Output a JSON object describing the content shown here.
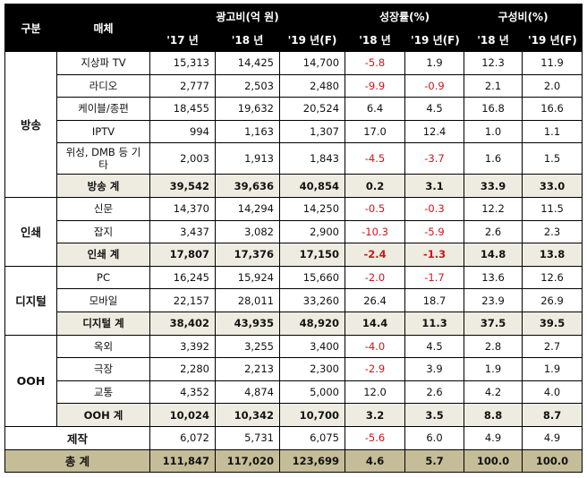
{
  "header": {
    "category": "구분",
    "media": "매체",
    "groups": {
      "ad_spend": "광고비(억 원)",
      "growth": "성장률(%)",
      "share": "구성비(%)"
    },
    "years": {
      "y17": "'17 년",
      "y18": "'18 년",
      "y19f": "'19 년(F)"
    }
  },
  "colors": {
    "header_bg": "#000000",
    "subtotal_bg": "#eeece1",
    "total_bg": "#c4bd97",
    "negative_text": "#d0151a"
  },
  "sections": {
    "broadcast": {
      "label": "방송",
      "rows": [
        {
          "media": "지상파 TV",
          "s17": "15,313",
          "s18": "14,425",
          "s19": "14,700",
          "g18": "-5.8",
          "g19": "1.9",
          "p18": "12.3",
          "p19": "11.9"
        },
        {
          "media": "라디오",
          "s17": "2,777",
          "s18": "2,503",
          "s19": "2,480",
          "g18": "-9.9",
          "g19": "-0.9",
          "p18": "2.1",
          "p19": "2.0"
        },
        {
          "media": "케이블/종편",
          "s17": "18,455",
          "s18": "19,632",
          "s19": "20,524",
          "g18": "6.4",
          "g19": "4.5",
          "p18": "16.8",
          "p19": "16.6"
        },
        {
          "media": "IPTV",
          "s17": "994",
          "s18": "1,163",
          "s19": "1,307",
          "g18": "17.0",
          "g19": "12.4",
          "p18": "1.0",
          "p19": "1.1"
        },
        {
          "media": "위성, DMB 등 기타",
          "s17": "2,003",
          "s18": "1,913",
          "s19": "1,843",
          "g18": "-4.5",
          "g19": "-3.7",
          "p18": "1.6",
          "p19": "1.5"
        }
      ],
      "subtotal": {
        "media": "방송 계",
        "s17": "39,542",
        "s18": "39,636",
        "s19": "40,854",
        "g18": "0.2",
        "g19": "3.1",
        "p18": "33.9",
        "p19": "33.0"
      }
    },
    "print": {
      "label": "인쇄",
      "rows": [
        {
          "media": "신문",
          "s17": "14,370",
          "s18": "14,294",
          "s19": "14,250",
          "g18": "-0.5",
          "g19": "-0.3",
          "p18": "12.2",
          "p19": "11.5"
        },
        {
          "media": "잡지",
          "s17": "3,437",
          "s18": "3,082",
          "s19": "2,900",
          "g18": "-10.3",
          "g19": "-5.9",
          "p18": "2.6",
          "p19": "2.3"
        }
      ],
      "subtotal": {
        "media": "인쇄 계",
        "s17": "17,807",
        "s18": "17,376",
        "s19": "17,150",
        "g18": "-2.4",
        "g19": "-1.3",
        "p18": "14.8",
        "p19": "13.8"
      }
    },
    "digital": {
      "label": "디지털",
      "rows": [
        {
          "media": "PC",
          "s17": "16,245",
          "s18": "15,924",
          "s19": "15,660",
          "g18": "-2.0",
          "g19": "-1.7",
          "p18": "13.6",
          "p19": "12.6"
        },
        {
          "media": "모바일",
          "s17": "22,157",
          "s18": "28,011",
          "s19": "33,260",
          "g18": "26.4",
          "g19": "18.7",
          "p18": "23.9",
          "p19": "26.9"
        }
      ],
      "subtotal": {
        "media": "디지털 계",
        "s17": "38,402",
        "s18": "43,935",
        "s19": "48,920",
        "g18": "14.4",
        "g19": "11.3",
        "p18": "37.5",
        "p19": "39.5"
      }
    },
    "ooh": {
      "label": "OOH",
      "rows": [
        {
          "media": "옥외",
          "s17": "3,392",
          "s18": "3,255",
          "s19": "3,400",
          "g18": "-4.0",
          "g19": "4.5",
          "p18": "2.8",
          "p19": "2.7"
        },
        {
          "media": "극장",
          "s17": "2,280",
          "s18": "2,213",
          "s19": "2,300",
          "g18": "-2.9",
          "g19": "3.9",
          "p18": "1.9",
          "p19": "1.9"
        },
        {
          "media": "교통",
          "s17": "4,352",
          "s18": "4,874",
          "s19": "5,000",
          "g18": "12.0",
          "g19": "2.6",
          "p18": "4.2",
          "p19": "4.0"
        }
      ],
      "subtotal": {
        "media": "OOH 계",
        "s17": "10,024",
        "s18": "10,342",
        "s19": "10,700",
        "g18": "3.2",
        "g19": "3.5",
        "p18": "8.8",
        "p19": "8.7"
      }
    }
  },
  "production": {
    "label": "제작",
    "s17": "6,072",
    "s18": "5,731",
    "s19": "6,075",
    "g18": "-5.6",
    "g19": "6.0",
    "p18": "4.9",
    "p19": "4.9"
  },
  "total": {
    "label": "총 계",
    "s17": "111,847",
    "s18": "117,020",
    "s19": "123,699",
    "g18": "4.6",
    "g19": "5.7",
    "p18": "100.0",
    "p19": "100.0"
  }
}
